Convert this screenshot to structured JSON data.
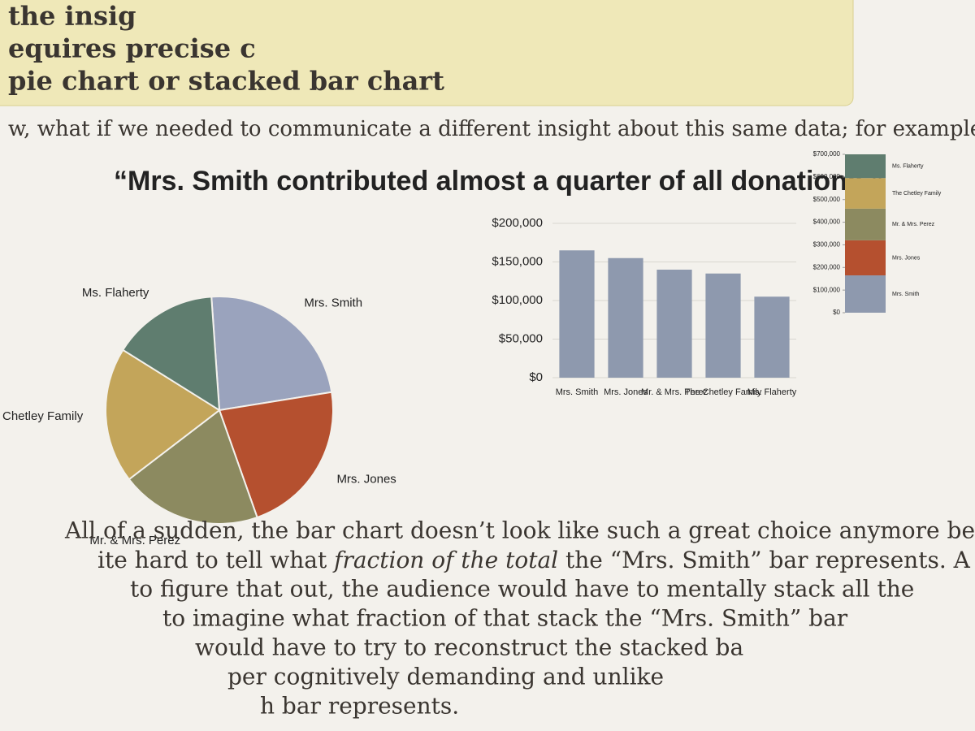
{
  "document": {
    "callout_lines": [
      "the insig",
      "equires precise c",
      "pie chart or stacked bar chart"
    ],
    "intro": "w, what if we needed to communicate a different insight about this same data; for example...",
    "heading": "“Mrs. Smith contributed almost a quarter of all donations.”",
    "paragraph": [
      "All of a sudden, the bar chart doesn’t look like such a great choice anymore because it",
      {
        "before": "ite hard to tell what ",
        "emphasis": "fraction of the total",
        "after": " the “Mrs. Smith” bar represents. A third? A"
      },
      "to figure that out, the audience would have to mentally stack all the",
      "to imagine what fraction of that stack the “Mrs. Smith” bar",
      "would have to try to reconstruct the stacked ba",
      "per cognitively demanding and unlike",
      "h bar represents."
    ]
  },
  "chart_data": [
    {
      "type": "pie",
      "categories": [
        "Mrs. Smith",
        "Mrs. Jones",
        "Mr. & Mrs. Perez",
        "The Chetley Family",
        "Ms. Flaherty"
      ],
      "values": [
        165000,
        155000,
        140000,
        135000,
        105000
      ],
      "colors": [
        "#9aa3bd",
        "#b5502f",
        "#8c8a60",
        "#c3a55a",
        "#5f7d6f"
      ]
    },
    {
      "type": "bar",
      "categories": [
        "Mrs. Smith",
        "Mrs. Jones",
        "Mr. & Mrs. Perez",
        "The Chetley Family",
        "Ms. Flaherty"
      ],
      "values": [
        165000,
        155000,
        140000,
        135000,
        105000
      ],
      "color": "#8e99ae",
      "ylim": [
        0,
        200000
      ],
      "yticks": [
        {
          "value": 0,
          "label": "$0"
        },
        {
          "value": 50000,
          "label": "$50,000"
        },
        {
          "value": 100000,
          "label": "$100,000"
        },
        {
          "value": 150000,
          "label": "$150,000"
        },
        {
          "value": 200000,
          "label": "$200,000"
        }
      ],
      "grid": true
    },
    {
      "type": "stacked-bar",
      "series": [
        {
          "name": "Mrs. Smith",
          "color": "#8e99ae",
          "values": [
            165000
          ]
        },
        {
          "name": "Mrs. Jones",
          "color": "#b5502f",
          "values": [
            155000
          ]
        },
        {
          "name": "Mr. & Mrs. Perez",
          "color": "#8c8a60",
          "values": [
            140000
          ]
        },
        {
          "name": "The Chetley Family",
          "color": "#c3a55a",
          "values": [
            135000
          ]
        },
        {
          "name": "Ms. Flaherty",
          "color": "#5f7d6f",
          "values": [
            105000
          ]
        }
      ],
      "ylim": [
        0,
        700000
      ],
      "yticks": [
        {
          "value": 0,
          "label": "$0"
        },
        {
          "value": 100000,
          "label": "$100,000"
        },
        {
          "value": 200000,
          "label": "$200,000"
        },
        {
          "value": 300000,
          "label": "$300,000"
        },
        {
          "value": 400000,
          "label": "$400,000"
        },
        {
          "value": 500000,
          "label": "$500,000"
        },
        {
          "value": 600000,
          "label": "$600,000"
        },
        {
          "value": 700000,
          "label": "$700,000"
        }
      ]
    }
  ]
}
